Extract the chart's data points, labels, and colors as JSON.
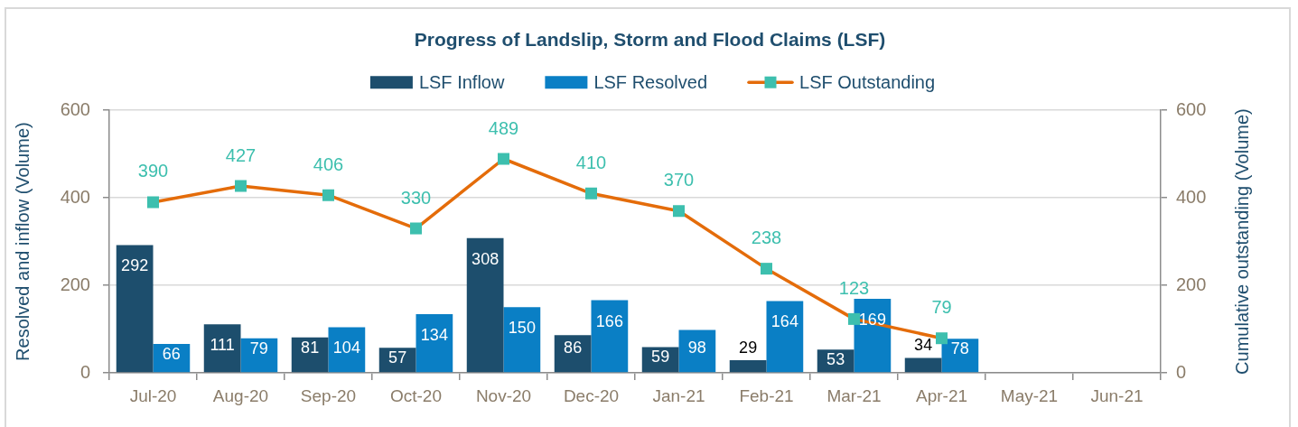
{
  "chart_data": {
    "type": "bar",
    "title": "Progress of Landslip, Storm and Flood Claims (LSF)",
    "ylabel": "Resolved and inflow (Volume)",
    "y2label": "Cumulative outstanding (Volume)",
    "categories": [
      "Jul-20",
      "Aug-20",
      "Sep-20",
      "Oct-20",
      "Nov-20",
      "Dec-20",
      "Jan-21",
      "Feb-21",
      "Mar-21",
      "Apr-21",
      "May-21",
      "Jun-21"
    ],
    "series": [
      {
        "name": "LSF Inflow",
        "color": "#1d4e6d",
        "values": [
          292,
          111,
          81,
          57,
          308,
          86,
          59,
          29,
          53,
          34,
          null,
          null
        ]
      },
      {
        "name": "LSF Resolved",
        "color": "#0a7fc5",
        "values": [
          66,
          79,
          104,
          134,
          150,
          166,
          98,
          164,
          169,
          78,
          null,
          null
        ]
      },
      {
        "name": "LSF Outstanding",
        "type": "line",
        "axis": "y2",
        "color": "#e46c0a",
        "colors": [
          "#3dbfae",
          "#3dbfae",
          "#3dbfae",
          "#3dbfae",
          "#3dbfae",
          "#3dbfae",
          "#3dbfae",
          "#3dbfae",
          "#3dbfae",
          "#3dbfae",
          "#3dbfae",
          "#3dbfae"
        ],
        "values": [
          390,
          427,
          406,
          330,
          489,
          410,
          370,
          238,
          123,
          79,
          null,
          null
        ]
      }
    ],
    "ylim": [
      0,
      600
    ],
    "yticks": [
      0,
      200,
      400,
      600
    ],
    "y2lim": [
      0,
      600
    ],
    "y2ticks": [
      0,
      200,
      400,
      600
    ],
    "grid": "y",
    "legend": "top",
    "marker": "square",
    "data_labels": true
  }
}
